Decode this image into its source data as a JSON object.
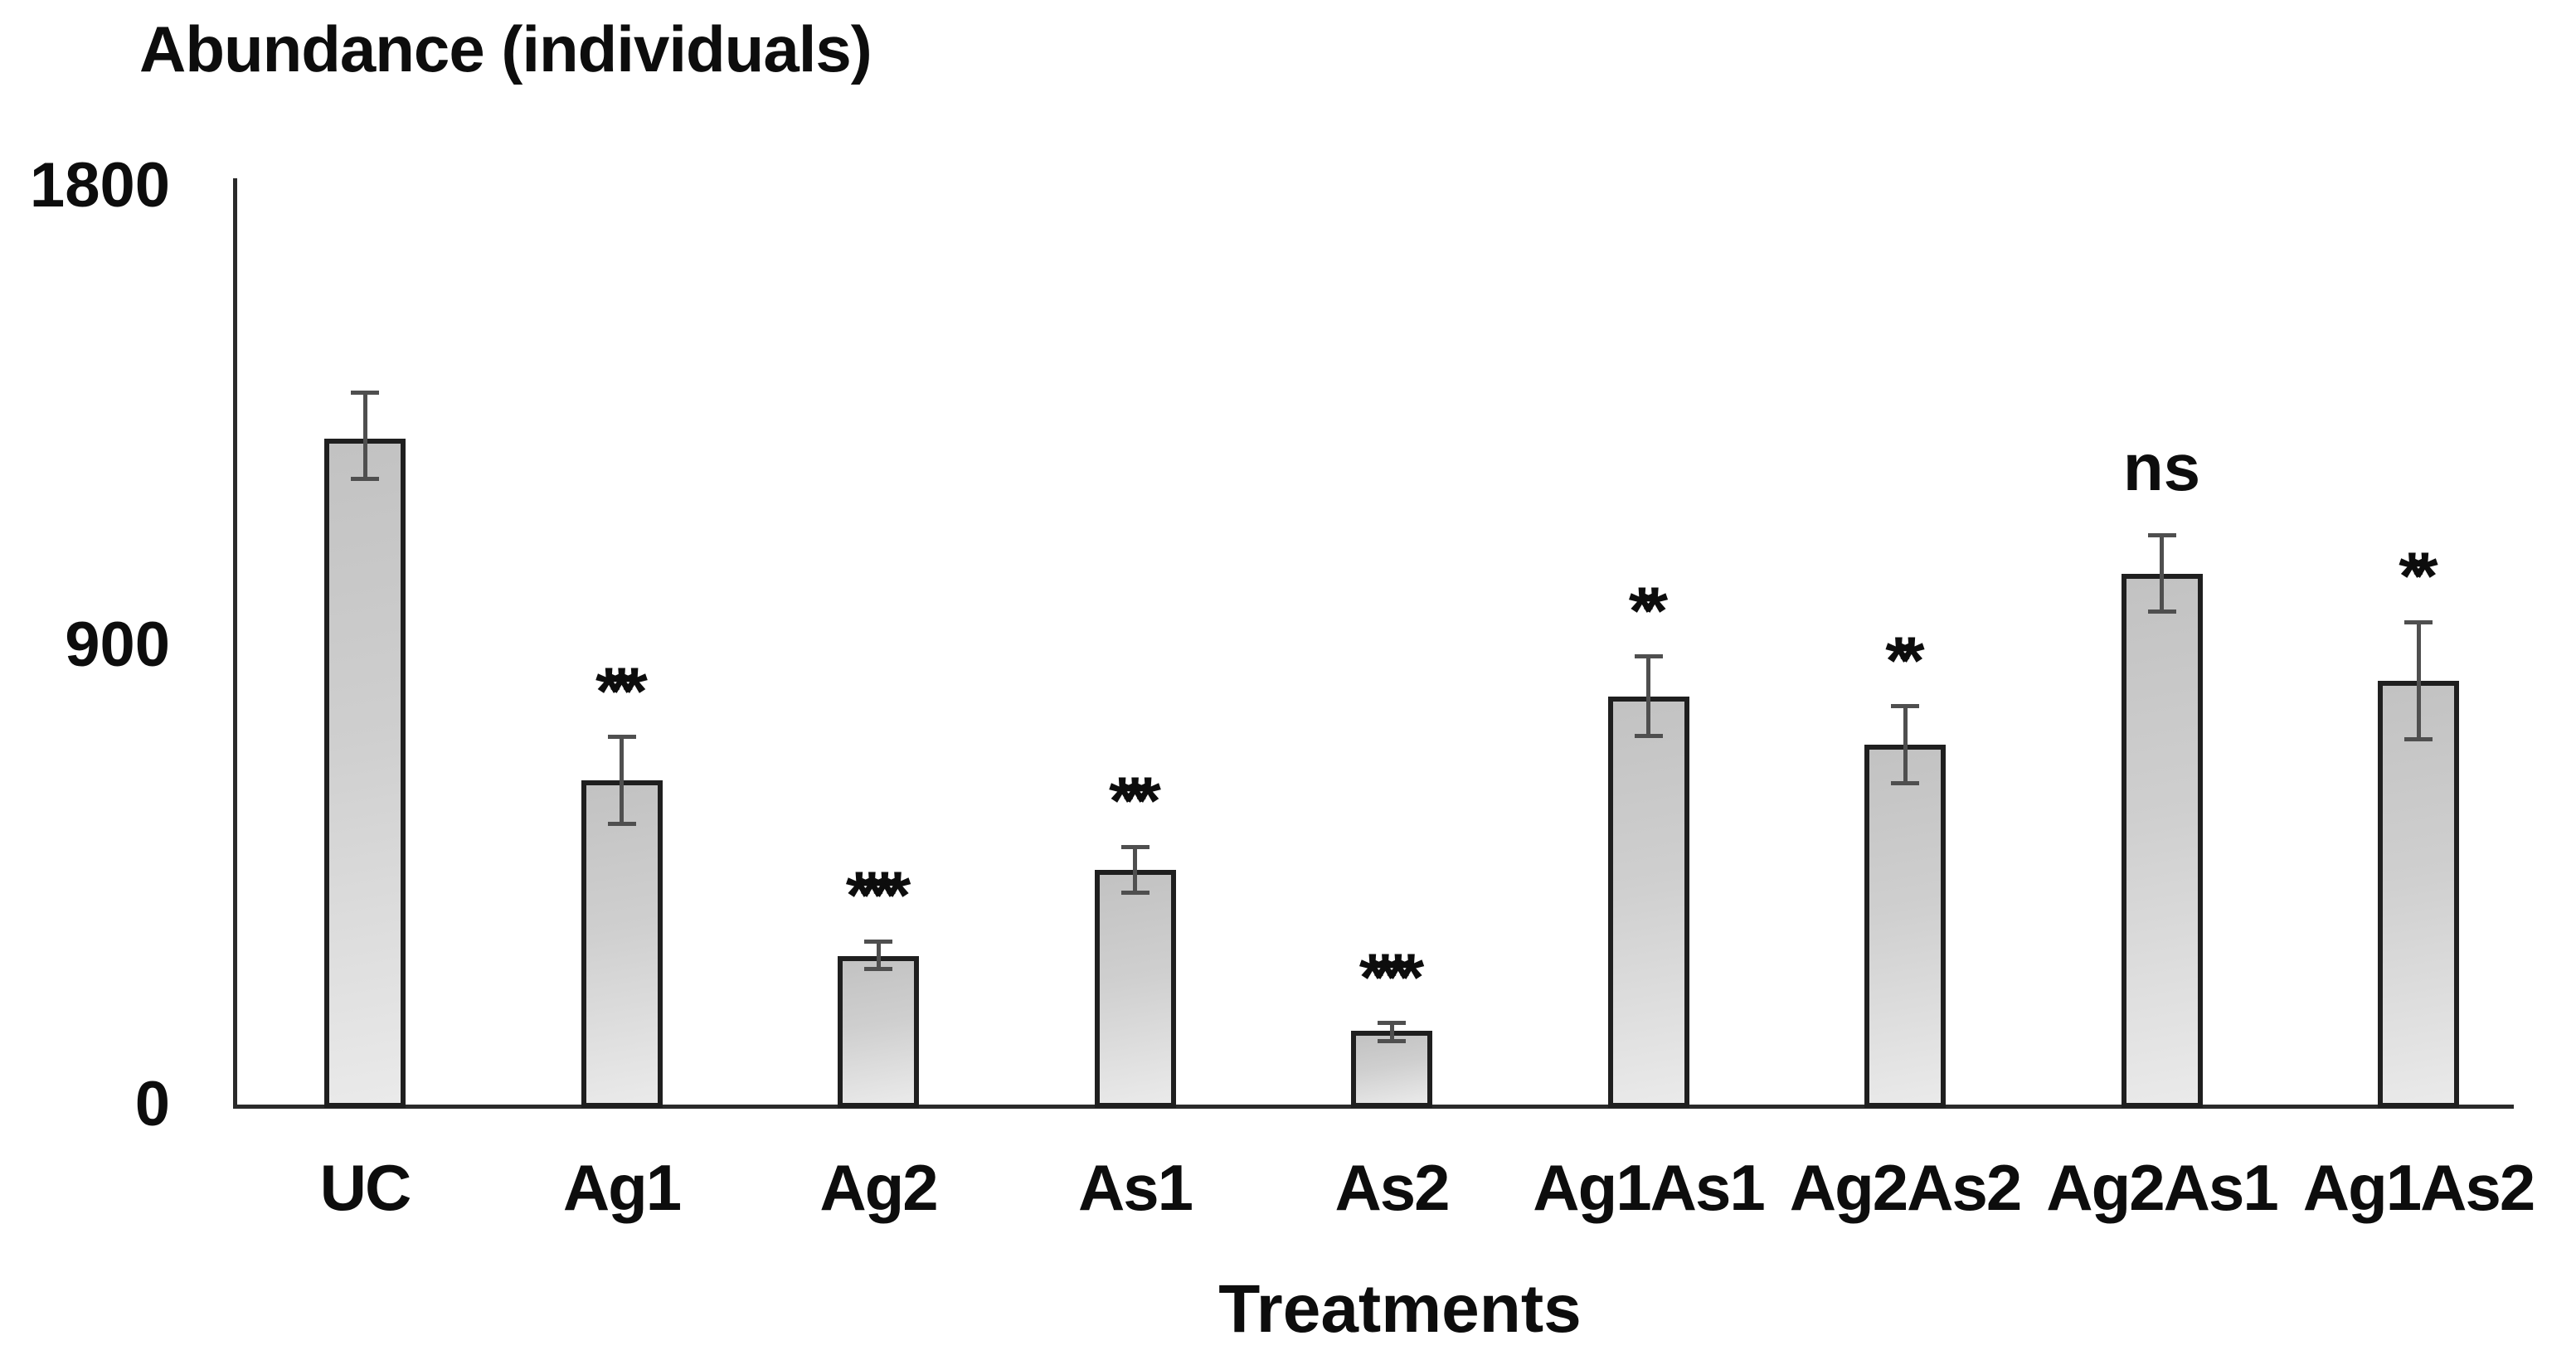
{
  "page": {
    "background": "#ffffff",
    "text_color": "#0d0d0d"
  },
  "chart_data": {
    "type": "bar",
    "title": "Abundance (individuals)",
    "xlabel": "Treatments",
    "ylabel": "Abundance (individuals)",
    "ylim": [
      0,
      1800
    ],
    "yticks": [
      1800,
      900,
      0
    ],
    "grid": false,
    "legend": null,
    "categories": [
      "UC",
      "Ag1",
      "Ag2",
      "As1",
      "As2",
      "Ag1As1",
      "Ag2As2",
      "Ag2As1",
      "Ag1As2"
    ],
    "values": [
      1305,
      635,
      290,
      460,
      145,
      800,
      705,
      1040,
      830
    ],
    "error_up": [
      90,
      85,
      30,
      45,
      15,
      78,
      75,
      75,
      115
    ],
    "error_down": [
      80,
      85,
      25,
      45,
      20,
      78,
      75,
      75,
      115
    ],
    "significance": [
      "",
      "***",
      "****",
      "***",
      "****",
      "**",
      "**",
      "ns",
      "**"
    ],
    "styles": {
      "bar_fill_light": "#eaeaea",
      "bar_fill_dark": "#c2c2c2",
      "bar_border": "#1f1f1f",
      "error_color": "#4f4f4f",
      "axis_color": "#2a2a2a"
    }
  }
}
